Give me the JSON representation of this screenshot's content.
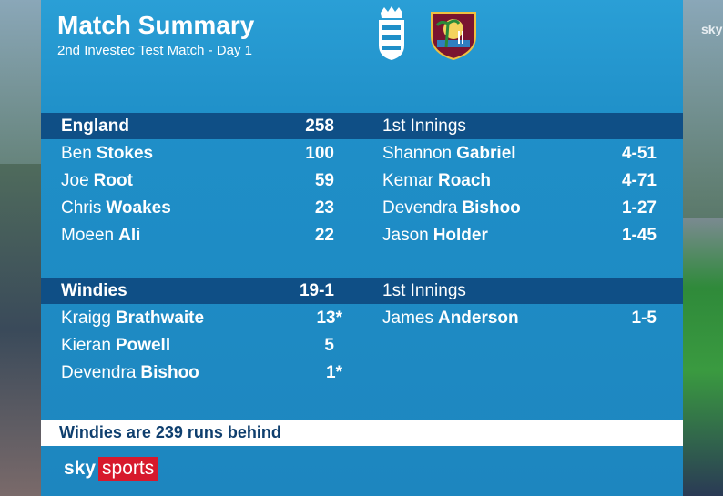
{
  "header": {
    "title": "Match Summary",
    "subtitle": "2nd Investec Test Match - Day 1"
  },
  "innings": [
    {
      "team": "England",
      "score": "258",
      "innings_label": "1st Innings",
      "batting": [
        {
          "first": "Ben",
          "last": "Stokes",
          "runs": "100"
        },
        {
          "first": "Joe",
          "last": "Root",
          "runs": "59"
        },
        {
          "first": "Chris",
          "last": "Woakes",
          "runs": "23"
        },
        {
          "first": "Moeen",
          "last": "Ali",
          "runs": "22"
        }
      ],
      "bowling": [
        {
          "first": "Shannon",
          "last": "Gabriel",
          "figures": "4-51"
        },
        {
          "first": "Kemar",
          "last": "Roach",
          "figures": "4-71"
        },
        {
          "first": "Devendra",
          "last": "Bishoo",
          "figures": "1-27"
        },
        {
          "first": "Jason",
          "last": "Holder",
          "figures": "1-45"
        }
      ]
    },
    {
      "team": "Windies",
      "score": "19-1",
      "innings_label": "1st Innings",
      "batting": [
        {
          "first": "Kraigg",
          "last": "Brathwaite",
          "runs": "13*"
        },
        {
          "first": "Kieran",
          "last": "Powell",
          "runs": "5"
        },
        {
          "first": "Devendra",
          "last": "Bishoo",
          "runs": "1*"
        }
      ],
      "bowling": [
        {
          "first": "James",
          "last": "Anderson",
          "figures": "1-5"
        }
      ]
    }
  ],
  "footer": {
    "status": "Windies are 239 runs behind"
  },
  "branding": {
    "sky": "sky",
    "sports": "sports"
  },
  "watermark": "sky"
}
